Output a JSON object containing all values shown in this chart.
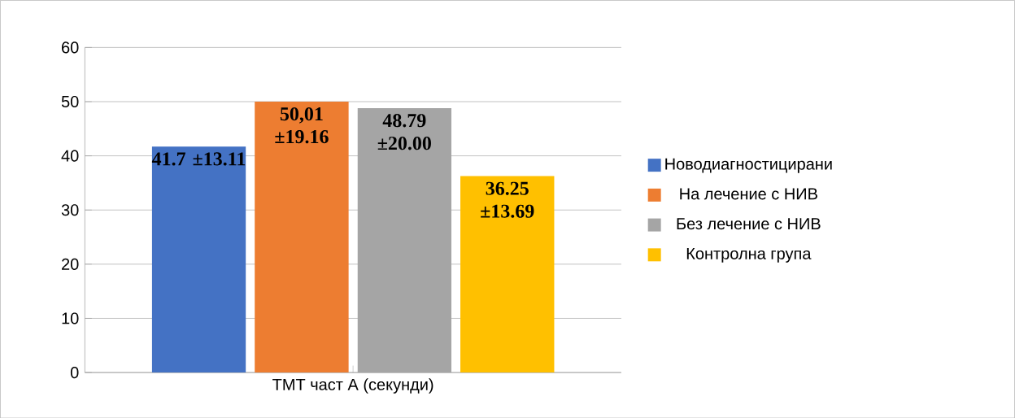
{
  "chart_data": {
    "type": "bar",
    "categories": [
      "ТМТ част А (секунди)"
    ],
    "series": [
      {
        "name": "Новодиагностицирани",
        "color": "#4472c4",
        "values": [
          41.7
        ],
        "value_labels": [
          "41.7 ±13.11"
        ]
      },
      {
        "name": "На лечение с НИВ",
        "color": "#ed7d31",
        "values": [
          50.01
        ],
        "value_labels": [
          "50,01 ±19.16"
        ]
      },
      {
        "name": "Без лечение с НИВ",
        "color": "#a5a5a5",
        "values": [
          48.79
        ],
        "value_labels": [
          "48.79 ±20.00"
        ]
      },
      {
        "name": "Контролна група",
        "color": "#ffc000",
        "values": [
          36.25
        ],
        "value_labels": [
          "36.25 ±13.69"
        ]
      }
    ],
    "ylim": [
      0,
      60
    ],
    "yticks": [
      0,
      10,
      20,
      30,
      40,
      50,
      60
    ],
    "grid": "y",
    "legend": "right"
  }
}
